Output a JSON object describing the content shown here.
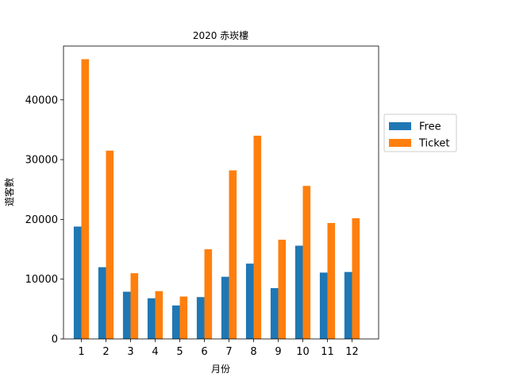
{
  "chart_data": {
    "type": "bar",
    "title": "2020 赤崁樓",
    "xlabel": "月份",
    "ylabel": "遊客數",
    "categories": [
      "1",
      "2",
      "3",
      "4",
      "5",
      "6",
      "7",
      "8",
      "9",
      "10",
      "11",
      "12"
    ],
    "series": [
      {
        "name": "Free",
        "color": "#1f77b4",
        "values": [
          18800,
          12000,
          7900,
          6800,
          5600,
          7000,
          10400,
          12600,
          8500,
          15600,
          11100,
          11200
        ]
      },
      {
        "name": "Ticket",
        "color": "#ff7f0e",
        "values": [
          46800,
          31500,
          11000,
          8000,
          7100,
          15000,
          28200,
          34000,
          16600,
          25600,
          19400,
          20200
        ]
      }
    ],
    "ylim": [
      0,
      49000
    ],
    "yticks": [
      0,
      10000,
      20000,
      30000,
      40000
    ],
    "grid": false,
    "legend_position": "outside-right"
  }
}
